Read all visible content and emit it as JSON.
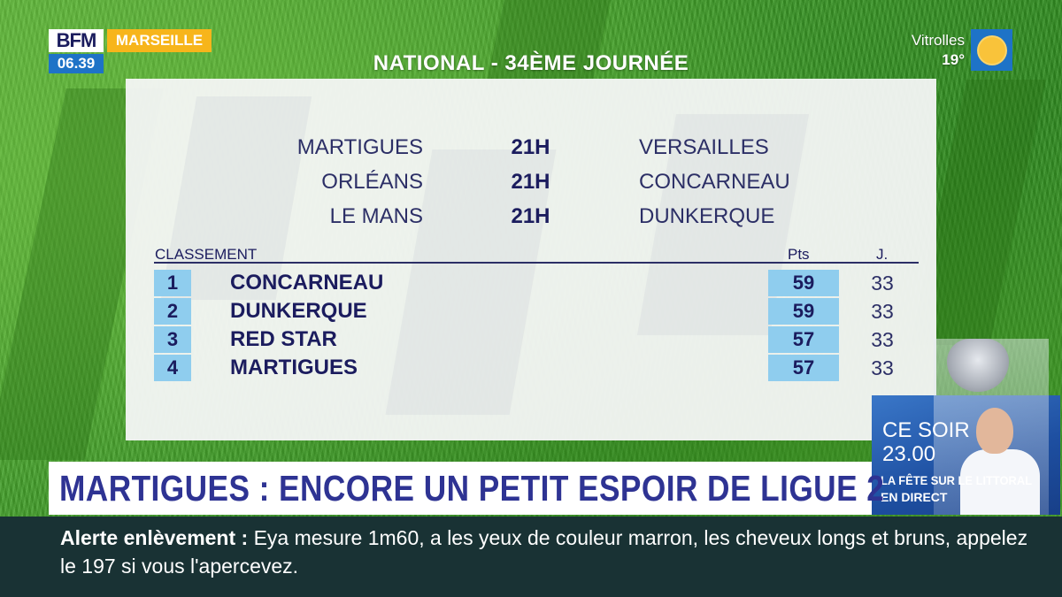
{
  "channel": {
    "logo": "BFM",
    "city": "MARSEILLE",
    "clock": "06.39"
  },
  "weather": {
    "city": "Vitrolles",
    "temp": "19°",
    "icon": "sun-icon"
  },
  "title": "NATIONAL - 34ÈME JOURNÉE",
  "matches": [
    {
      "home": "MARTIGUES",
      "time": "21H",
      "away": "VERSAILLES"
    },
    {
      "home": "ORLÉANS",
      "time": "21H",
      "away": "CONCARNEAU"
    },
    {
      "home": "LE MANS",
      "time": "21H",
      "away": "DUNKERQUE"
    }
  ],
  "standings": {
    "label": "CLASSEMENT",
    "pts_label": "Pts",
    "played_label": "J.",
    "rows": [
      {
        "rank": "1",
        "team": "CONCARNEAU",
        "pts": "59",
        "played": "33"
      },
      {
        "rank": "2",
        "team": "DUNKERQUE",
        "pts": "59",
        "played": "33"
      },
      {
        "rank": "3",
        "team": "RED STAR",
        "pts": "57",
        "played": "33"
      },
      {
        "rank": "4",
        "team": "MARTIGUES",
        "pts": "57",
        "played": "33"
      }
    ]
  },
  "headline": "MARTIGUES : ENCORE UN PETIT ESPOIR DE LIGUE 2",
  "promo": {
    "line1": "CE SOIR",
    "line2": "23.00",
    "line3": "LA FÊTE SUR LE LITTORAL",
    "line4": "EN DIRECT"
  },
  "ticker": {
    "label": "Alerte enlèvement",
    "separator": " : ",
    "text": "Eya mesure 1m60, a les yeux de couleur marron, les cheveux longs et bruns, appelez le 197 si vous l'apercevez."
  },
  "colors": {
    "navy": "#1b1c5e",
    "accent_blue": "#1e73c7",
    "highlight_cyan": "#8fcdee",
    "city_orange": "#f7b51b",
    "ticker_bg": "#193234",
    "headline_text": "#2e3393"
  }
}
